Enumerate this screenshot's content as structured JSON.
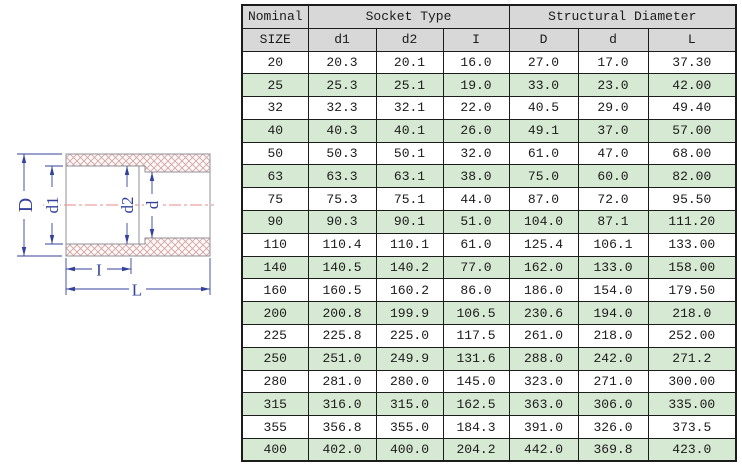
{
  "diagram": {
    "labels": {
      "outer_diameter": "D",
      "socket_entry_diameter": "d1",
      "socket_bottom_diameter": "d2",
      "bore_diameter": "d",
      "socket_depth": "I",
      "overall_length": "L"
    },
    "colors": {
      "dimension_line": "#35429b",
      "wall_outline": "#8f8f98",
      "hatch": "#d4a3a3",
      "centerline": "#e58a8a"
    }
  },
  "table": {
    "header": {
      "nominal": "Nominal",
      "size": "SIZE",
      "socket_group": "Socket Type",
      "structural_group": "Structural Diameter",
      "sub": [
        "d1",
        "d2",
        "I",
        "D",
        "d",
        "L"
      ]
    },
    "colors": {
      "header_bg": "#d8d8d8",
      "highlight_row_bg": "#d6e9d2",
      "border": "#1c1c1c"
    },
    "rows": [
      {
        "size": "20",
        "d1": "20.3",
        "d2": "20.1",
        "I": "16.0",
        "D": "27.0",
        "d": "17.0",
        "L": "37.30",
        "highlight": false
      },
      {
        "size": "25",
        "d1": "25.3",
        "d2": "25.1",
        "I": "19.0",
        "D": "33.0",
        "d": "23.0",
        "L": "42.00",
        "highlight": true
      },
      {
        "size": "32",
        "d1": "32.3",
        "d2": "32.1",
        "I": "22.0",
        "D": "40.5",
        "d": "29.0",
        "L": "49.40",
        "highlight": false
      },
      {
        "size": "40",
        "d1": "40.3",
        "d2": "40.1",
        "I": "26.0",
        "D": "49.1",
        "d": "37.0",
        "L": "57.00",
        "highlight": true
      },
      {
        "size": "50",
        "d1": "50.3",
        "d2": "50.1",
        "I": "32.0",
        "D": "61.0",
        "d": "47.0",
        "L": "68.00",
        "highlight": false
      },
      {
        "size": "63",
        "d1": "63.3",
        "d2": "63.1",
        "I": "38.0",
        "D": "75.0",
        "d": "60.0",
        "L": "82.00",
        "highlight": true
      },
      {
        "size": "75",
        "d1": "75.3",
        "d2": "75.1",
        "I": "44.0",
        "D": "87.0",
        "d": "72.0",
        "L": "95.50",
        "highlight": false
      },
      {
        "size": "90",
        "d1": "90.3",
        "d2": "90.1",
        "I": "51.0",
        "D": "104.0",
        "d": "87.1",
        "L": "111.20",
        "highlight": true
      },
      {
        "size": "110",
        "d1": "110.4",
        "d2": "110.1",
        "I": "61.0",
        "D": "125.4",
        "d": "106.1",
        "L": "133.00",
        "highlight": false
      },
      {
        "size": "140",
        "d1": "140.5",
        "d2": "140.2",
        "I": "77.0",
        "D": "162.0",
        "d": "133.0",
        "L": "158.00",
        "highlight": true
      },
      {
        "size": "160",
        "d1": "160.5",
        "d2": "160.2",
        "I": "86.0",
        "D": "186.0",
        "d": "154.0",
        "L": "179.50",
        "highlight": false
      },
      {
        "size": "200",
        "d1": "200.8",
        "d2": "199.9",
        "I": "106.5",
        "D": "230.6",
        "d": "194.0",
        "L": "218.0",
        "highlight": true
      },
      {
        "size": "225",
        "d1": "225.8",
        "d2": "225.0",
        "I": "117.5",
        "D": "261.0",
        "d": "218.0",
        "L": "252.00",
        "highlight": false
      },
      {
        "size": "250",
        "d1": "251.0",
        "d2": "249.9",
        "I": "131.6",
        "D": "288.0",
        "d": "242.0",
        "L": "271.2",
        "highlight": true
      },
      {
        "size": "280",
        "d1": "281.0",
        "d2": "280.0",
        "I": "145.0",
        "D": "323.0",
        "d": "271.0",
        "L": "300.00",
        "highlight": false
      },
      {
        "size": "315",
        "d1": "316.0",
        "d2": "315.0",
        "I": "162.5",
        "D": "363.0",
        "d": "306.0",
        "L": "335.00",
        "highlight": true
      },
      {
        "size": "355",
        "d1": "356.8",
        "d2": "355.0",
        "I": "184.3",
        "D": "391.0",
        "d": "326.0",
        "L": "373.5",
        "highlight": false
      },
      {
        "size": "400",
        "d1": "402.0",
        "d2": "400.0",
        "I": "204.2",
        "D": "442.0",
        "d": "369.8",
        "L": "423.0",
        "highlight": true
      }
    ]
  }
}
